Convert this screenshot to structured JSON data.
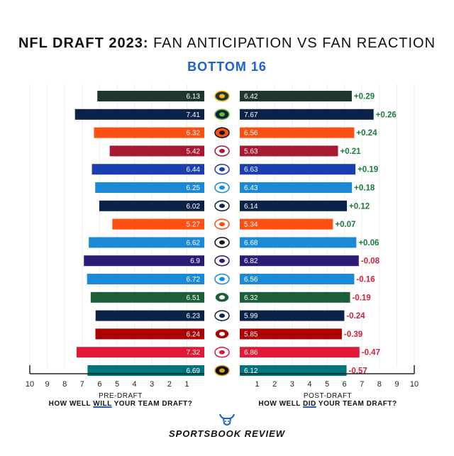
{
  "header": {
    "title_bold": "NFL DRAFT 2023:",
    "title_rest": "FAN ANTICIPATION VS FAN REACTION",
    "subtitle": "BOTTOM 16"
  },
  "captions": {
    "pre_line1": "PRE-DRAFT",
    "pre_line2_a": "HOW WELL ",
    "pre_line2_em": "WILL",
    "pre_line2_b": " YOUR TEAM DRAFT?",
    "post_line1": "POST-DRAFT",
    "post_line2_a": "HOW WELL ",
    "post_line2_em": "DID",
    "post_line2_b": " YOUR TEAM DRAFT?"
  },
  "brand": {
    "name": "SPORTSBOOK REVIEW",
    "icon": "bull-icon"
  },
  "colors": {
    "positive": "#1a7a3c",
    "negative": "#d0203a",
    "accent": "#1d5fd6"
  },
  "chart_data": {
    "type": "bar",
    "title": "NFL DRAFT 2023: FAN ANTICIPATION VS FAN REACTION",
    "subtitle": "BOTTOM 16",
    "xlabel_left": "PRE-DRAFT",
    "xlabel_right": "POST-DRAFT",
    "xlim": [
      0,
      10
    ],
    "ticks_left": [
      "10",
      "9",
      "8",
      "7",
      "6",
      "5",
      "4",
      "3",
      "2",
      "1"
    ],
    "ticks_right": [
      "1",
      "2",
      "3",
      "4",
      "5",
      "6",
      "7",
      "8",
      "9",
      "10"
    ],
    "series": [
      {
        "name": "Pre-draft"
      },
      {
        "name": "Post-draft"
      }
    ],
    "rows": [
      {
        "team": "Packers",
        "icon": "packers-logo-icon",
        "pre": 6.13,
        "post": 6.42,
        "pre_label": "6.13",
        "post_label": "6.42",
        "delta": "+0.29",
        "color": "#203731",
        "logo_bg": "#203731",
        "logo_fg": "#ffb612"
      },
      {
        "team": "Seahawks",
        "icon": "seahawks-logo-icon",
        "pre": 7.41,
        "post": 7.67,
        "pre_label": "7.41",
        "post_label": "7.67",
        "delta": "+0.26",
        "color": "#0b2249",
        "logo_bg": "#0b2249",
        "logo_fg": "#69be28"
      },
      {
        "team": "Bengals",
        "icon": "bengals-logo-icon",
        "pre": 6.32,
        "post": 6.56,
        "pre_label": "6.32",
        "post_label": "6.56",
        "delta": "+0.24",
        "color": "#fb4f14",
        "logo_bg": "#fb4f14",
        "logo_fg": "#111111"
      },
      {
        "team": "Falcons",
        "icon": "falcons-logo-icon",
        "pre": 5.42,
        "post": 5.63,
        "pre_label": "5.42",
        "post_label": "5.63",
        "delta": "+0.21",
        "color": "#a71930",
        "logo_bg": "#ffffff",
        "logo_fg": "#a71930"
      },
      {
        "team": "Bills",
        "icon": "bills-logo-icon",
        "pre": 6.44,
        "post": 6.63,
        "pre_label": "6.44",
        "post_label": "6.63",
        "delta": "+0.19",
        "color": "#1b3fb0",
        "logo_bg": "#ffffff",
        "logo_fg": "#1b3fb0"
      },
      {
        "team": "Chargers",
        "icon": "chargers-logo-icon",
        "pre": 6.25,
        "post": 6.43,
        "pre_label": "6.25",
        "post_label": "6.43",
        "delta": "+0.18",
        "color": "#1a8ad6",
        "logo_bg": "#ffffff",
        "logo_fg": "#1a8ad6"
      },
      {
        "team": "Patriots",
        "icon": "patriots-logo-icon",
        "pre": 6.02,
        "post": 6.14,
        "pre_label": "6.02",
        "post_label": "6.14",
        "delta": "+0.12",
        "color": "#0b2249",
        "logo_bg": "#ffffff",
        "logo_fg": "#0b2249"
      },
      {
        "team": "Broncos",
        "icon": "broncos-logo-icon",
        "pre": 5.27,
        "post": 5.34,
        "pre_label": "5.27",
        "post_label": "5.34",
        "delta": "+0.07",
        "color": "#fb4f14",
        "logo_bg": "#ffffff",
        "logo_fg": "#fb4f14"
      },
      {
        "team": "Panthers",
        "icon": "panthers-logo-icon",
        "pre": 6.62,
        "post": 6.68,
        "pre_label": "6.62",
        "post_label": "6.68",
        "delta": "+0.06",
        "color": "#1a8ad6",
        "logo_bg": "#ffffff",
        "logo_fg": "#111111"
      },
      {
        "team": "Ravens",
        "icon": "ravens-logo-icon",
        "pre": 6.9,
        "post": 6.82,
        "pre_label": "6.9",
        "post_label": "6.82",
        "delta": "-0.08",
        "color": "#2e1b78",
        "logo_bg": "#ffffff",
        "logo_fg": "#2e1b78"
      },
      {
        "team": "Lions",
        "icon": "lions-logo-icon",
        "pre": 6.72,
        "post": 6.56,
        "pre_label": "6.72",
        "post_label": "6.56",
        "delta": "-0.16",
        "color": "#1a8ad6",
        "logo_bg": "#ffffff",
        "logo_fg": "#1a8ad6"
      },
      {
        "team": "Jets",
        "icon": "jets-logo-icon",
        "pre": 6.51,
        "post": 6.32,
        "pre_label": "6.51",
        "post_label": "6.32",
        "delta": "-0.19",
        "color": "#1c5e3a",
        "logo_bg": "#1c5e3a",
        "logo_fg": "#ffffff"
      },
      {
        "team": "Cowboys",
        "icon": "cowboys-logo-icon",
        "pre": 6.23,
        "post": 5.99,
        "pre_label": "6.23",
        "post_label": "5.99",
        "delta": "-0.24",
        "color": "#0b2249",
        "logo_bg": "#ffffff",
        "logo_fg": "#0b2249"
      },
      {
        "team": "49ers",
        "icon": "49ers-logo-icon",
        "pre": 6.24,
        "post": 5.85,
        "pre_label": "6.24",
        "post_label": "5.85",
        "delta": "-0.39",
        "color": "#aa0000",
        "logo_bg": "#aa0000",
        "logo_fg": "#ffffff"
      },
      {
        "team": "Chiefs",
        "icon": "chiefs-logo-icon",
        "pre": 7.32,
        "post": 6.86,
        "pre_label": "7.32",
        "post_label": "6.86",
        "delta": "-0.47",
        "color": "#e31837",
        "logo_bg": "#ffffff",
        "logo_fg": "#e31837"
      },
      {
        "team": "Jaguars",
        "icon": "jaguars-logo-icon",
        "pre": 6.69,
        "post": 6.12,
        "pre_label": "6.69",
        "post_label": "6.12",
        "delta": "-0.57",
        "color": "#00747a",
        "logo_bg": "#111111",
        "logo_fg": "#d7a22a"
      }
    ]
  }
}
